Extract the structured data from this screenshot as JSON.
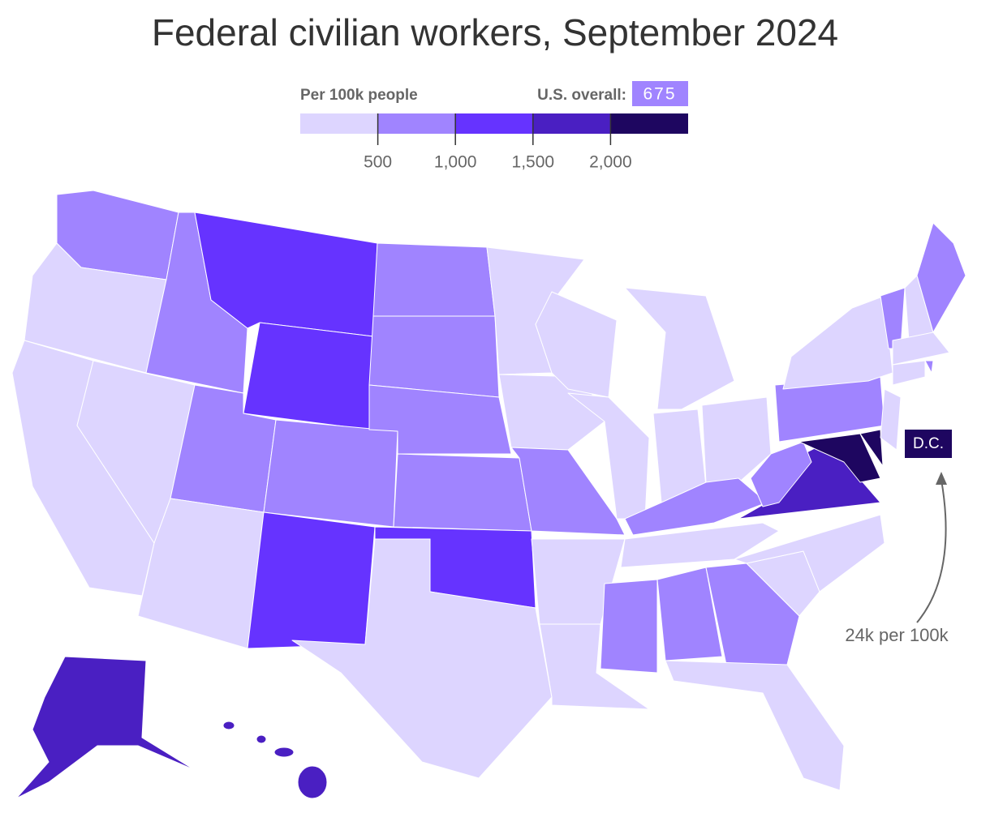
{
  "title": "Federal civilian workers, September 2024",
  "legend": {
    "title": "Per 100k people",
    "overall_label": "U.S. overall:",
    "overall_value": 675,
    "xlim": [
      0,
      2500
    ],
    "ticks": [
      500,
      {
        "value": 1000,
        "label": "1,000"
      },
      {
        "value": 1500,
        "label": "1,500"
      },
      {
        "value": 2000,
        "label": "2,000"
      }
    ],
    "colors": [
      "#ddd5ff",
      "#a084ff",
      "#6633ff",
      "#4a1fc2",
      "#1e0660"
    ]
  },
  "annotations": {
    "dc_label": "D.C.",
    "dc_note": "24k per 100k"
  }
}
